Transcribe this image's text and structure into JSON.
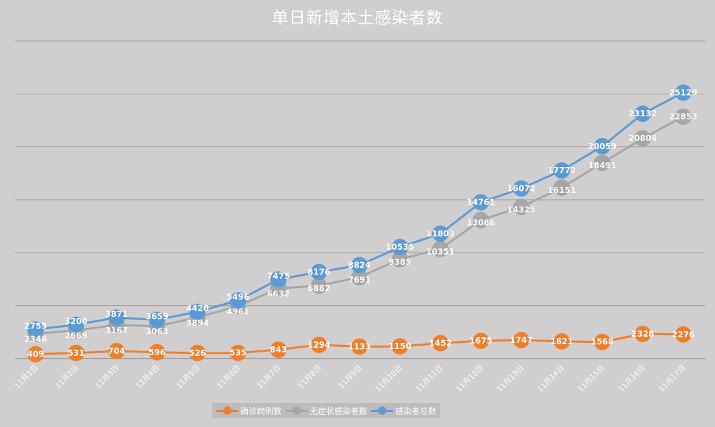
{
  "chart_data": {
    "type": "line",
    "title": "单日新增本土感染者数",
    "categories": [
      "11月1日",
      "11月2日",
      "11月3日",
      "11月4日",
      "11月5日",
      "11月6日",
      "11月7日",
      "11月8日",
      "11月9日",
      "11月10日",
      "11月11日",
      "11月12日",
      "11月13日",
      "11月14日",
      "11月15日",
      "11月16日",
      "11月17日"
    ],
    "series": [
      {
        "name": "确诊病例数",
        "color": "#f07f2a",
        "values": [
          409,
          531,
          704,
          596,
          526,
          535,
          843,
          1294,
          1133,
          1150,
          1452,
          1675,
          1747,
          1621,
          1568,
          2328,
          2276
        ]
      },
      {
        "name": "无症状感染者数",
        "color": "#a6a6a6",
        "values": [
          2346,
          2669,
          3167,
          3063,
          3894,
          4961,
          6632,
          6882,
          7691,
          9385,
          10351,
          13086,
          14325,
          16151,
          18491,
          20804,
          22853
        ]
      },
      {
        "name": "感染者总数",
        "color": "#5b9bd5",
        "values": [
          2755,
          3200,
          3871,
          3659,
          4420,
          5496,
          7475,
          8176,
          8824,
          10535,
          11803,
          14761,
          16072,
          17772,
          20059,
          23132,
          25129
        ]
      }
    ],
    "ylim": [
      0,
      30000
    ],
    "grid": true,
    "legend": "bottom"
  }
}
